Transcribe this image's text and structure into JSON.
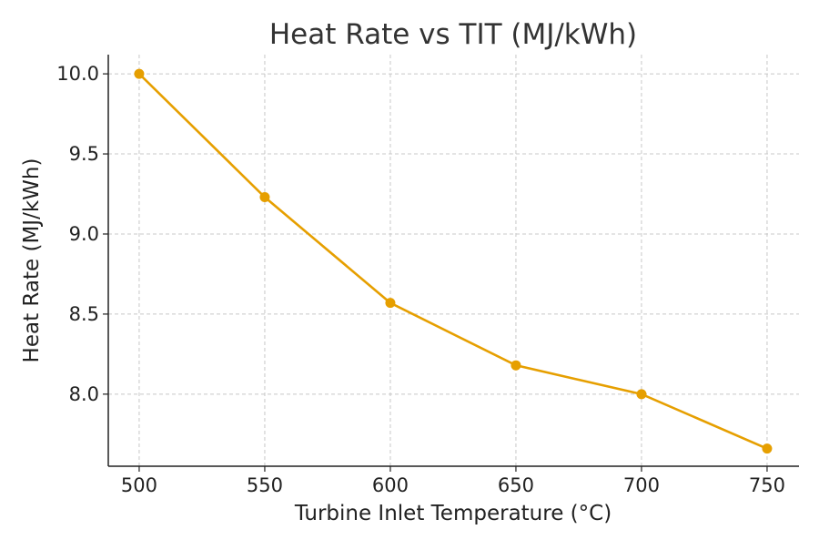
{
  "chart_data": {
    "type": "line",
    "title": "Heat Rate vs TIT (MJ/kWh)",
    "xlabel": "Turbine Inlet Temperature (°C)",
    "ylabel": "Heat Rate (MJ/kWh)",
    "x": [
      500,
      550,
      600,
      650,
      700,
      750
    ],
    "series": [
      {
        "values": [
          10.0,
          9.23,
          8.57,
          8.18,
          8.0,
          7.66
        ],
        "color": "#E69F00",
        "marker": "circle"
      }
    ],
    "xticks": [
      500,
      550,
      600,
      650,
      700,
      750
    ],
    "xtick_labels": [
      "500",
      "550",
      "600",
      "650",
      "700",
      "750"
    ],
    "yticks": [
      8.0,
      8.5,
      9.0,
      9.5,
      10.0
    ],
    "ytick_labels": [
      "8.0",
      "8.5",
      "9.0",
      "9.5",
      "10.0"
    ],
    "xlim": [
      487.7,
      762.7
    ],
    "ylim": [
      7.55,
      10.12
    ],
    "grid": true
  }
}
